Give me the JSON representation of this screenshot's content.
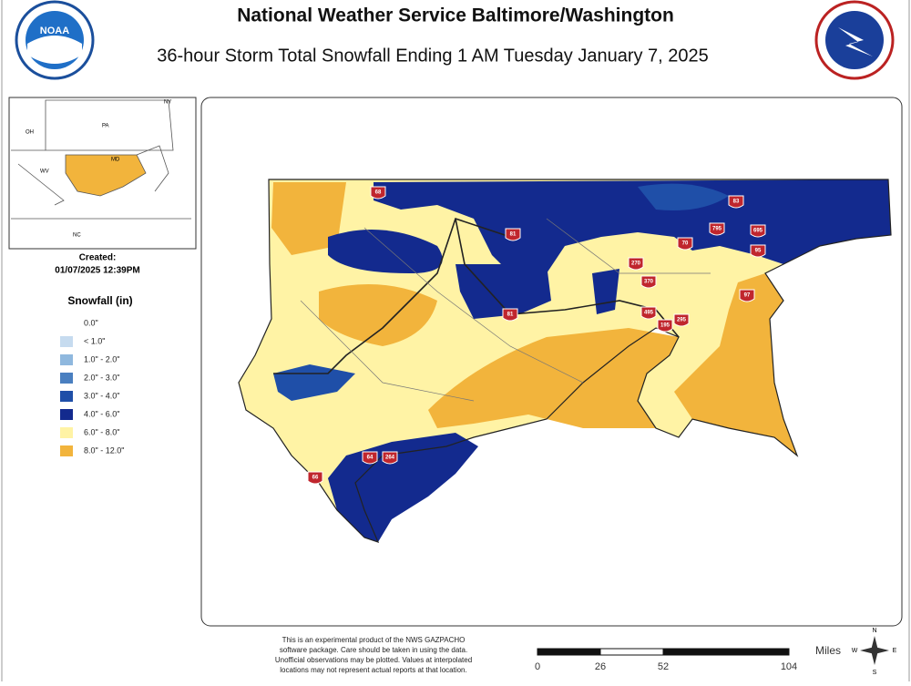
{
  "header": {
    "title": "National Weather Service Baltimore/Washington",
    "subtitle": "36-hour Storm Total Snowfall Ending 1 AM Tuesday January 7, 2025"
  },
  "logos": {
    "left": "NOAA"
  },
  "inset": {
    "labels": [
      "OH",
      "PA",
      "NY",
      "WV",
      "MD",
      "NC"
    ]
  },
  "created": {
    "label": "Created:",
    "date": "01/07/2025 12:39PM"
  },
  "legend": {
    "title": "Snowfall (in)",
    "items": [
      {
        "label": "0.0\"",
        "color": "#ffffff"
      },
      {
        "label": "< 1.0\"",
        "color": "#c6dbef"
      },
      {
        "label": "1.0\" - 2.0\"",
        "color": "#8fb8de"
      },
      {
        "label": "2.0\" - 3.0\"",
        "color": "#4a7fc0"
      },
      {
        "label": "3.0\" - 4.0\"",
        "color": "#1f4fa8"
      },
      {
        "label": "4.0\" - 6.0\"",
        "color": "#132a8e"
      },
      {
        "label": "6.0\" - 8.0\"",
        "color": "#fff3a5"
      },
      {
        "label": "8.0\" - 12.0\"",
        "color": "#f2b43c"
      }
    ]
  },
  "interstates": [
    "68",
    "81",
    "83",
    "795",
    "695",
    "95",
    "70",
    "270",
    "370",
    "495",
    "195",
    "295",
    "97",
    "66",
    "64",
    "264",
    "81"
  ],
  "footer": {
    "disclaimer": [
      "This is an experimental product of the NWS GAZPACHO",
      "software package. Care should be taken in using the data.",
      "Unofficial observations may be plotted. Values at interpolated",
      "locations may not represent actual reports at that location."
    ]
  },
  "scale_bar": {
    "unit": "Miles",
    "labels": [
      0,
      26,
      52,
      104
    ]
  },
  "compass": [
    "N",
    "E",
    "S",
    "W"
  ]
}
